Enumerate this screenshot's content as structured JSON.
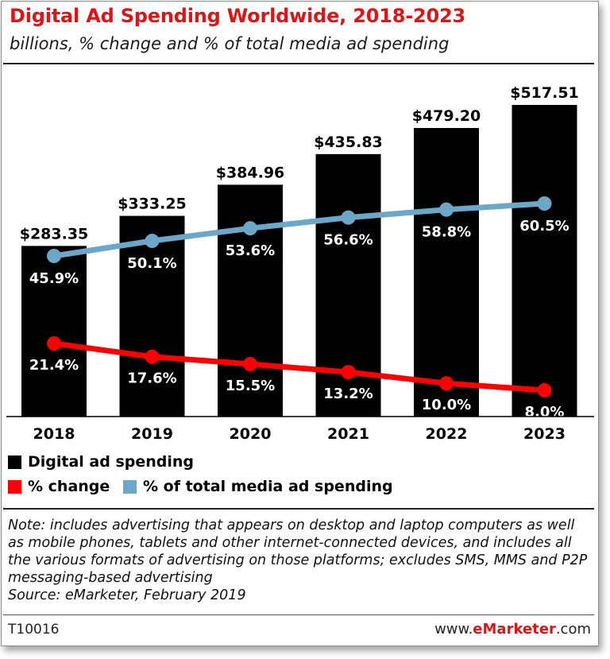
{
  "title": "Digital Ad Spending Worldwide, 2018-2023",
  "subtitle": "billions, % change and % of total media ad spending",
  "chart_data": {
    "type": "bar",
    "title": "Digital Ad Spending Worldwide, 2018-2023",
    "subtitle": "billions, % change and % of total media ad spending",
    "categories": [
      "2018",
      "2019",
      "2020",
      "2021",
      "2022",
      "2023"
    ],
    "series": [
      {
        "name": "Digital ad spending",
        "type": "bar",
        "color": "#000000",
        "values": [
          283.35,
          333.25,
          384.96,
          435.83,
          479.2,
          517.51
        ],
        "labels": [
          "$283.35",
          "$333.25",
          "$384.96",
          "$435.83",
          "$479.20",
          "$517.51"
        ]
      },
      {
        "name": "% change",
        "type": "line",
        "color": "#ff0000",
        "values": [
          21.4,
          17.6,
          15.5,
          13.2,
          10.0,
          8.0
        ],
        "labels": [
          "21.4%",
          "17.6%",
          "15.5%",
          "13.2%",
          "10.0%",
          "8.0%"
        ]
      },
      {
        "name": "% of total media ad spending",
        "type": "line",
        "color": "#6aa7c9",
        "values": [
          45.9,
          50.1,
          53.6,
          56.6,
          58.8,
          60.5
        ],
        "labels": [
          "45.9%",
          "50.1%",
          "53.6%",
          "56.6%",
          "58.8%",
          "60.5%"
        ]
      }
    ],
    "legend": [
      "Digital ad spending",
      "% change",
      "% of total media ad spending"
    ],
    "grid": false
  },
  "note": "Note: includes advertising that appears on desktop and laptop computers as well as mobile phones, tablets and other internet-connected devices, and includes all the various formats of advertising on those platforms; excludes SMS, MMS and P2P messaging-based advertising",
  "source": "Source: eMarketer, February 2019",
  "chart_id": "T10016",
  "brand": {
    "prefix": "www.",
    "name": "eMarketer",
    "suffix": ".com"
  }
}
